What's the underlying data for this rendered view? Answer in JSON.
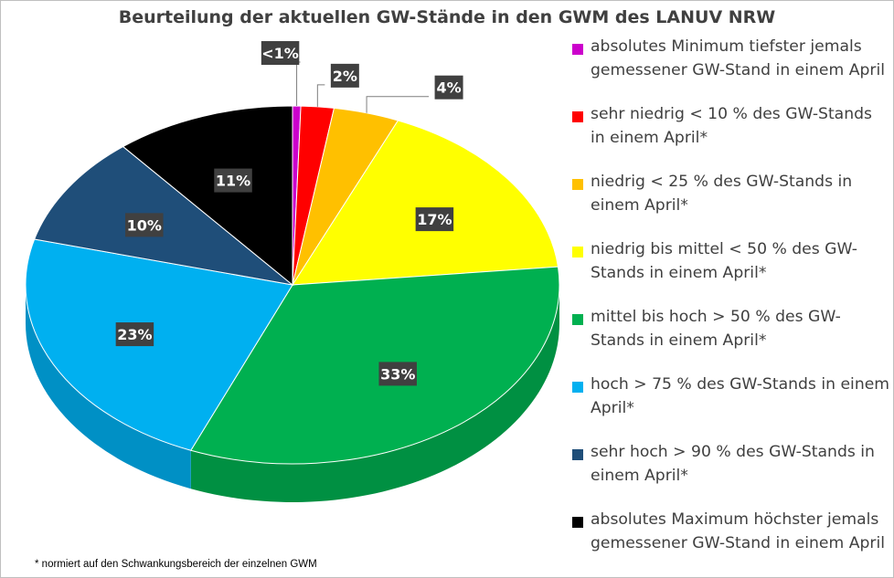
{
  "chart_data": {
    "type": "pie",
    "title": "Beurteilung der aktuellen GW-Stände in den GWM des LANUV NRW",
    "categories": [
      "absolutes Minimum  tiefster jemals gemessener GW-Stand in einem April",
      "sehr niedrig  < 10 % des GW-Stands in einem April*",
      "niedrig   < 25 % des GW-Stands in einem April*",
      "niedrig bis mittel  < 50 % des GW-Stands in einem April*",
      "mittel bis hoch  > 50 % des GW-Stands in einem April*",
      "hoch  > 75 % des GW-Stands in einem April*",
      "sehr hoch  > 90 % des GW-Stands in einem April*",
      "absolutes Maximum  höchster jemals gemessener GW-Stand in einem April"
    ],
    "values": [
      0.5,
      2,
      4,
      17,
      33,
      23,
      10,
      11
    ],
    "labels": [
      "<1%",
      "2%",
      "4%",
      "17%",
      "33%",
      "23%",
      "10%",
      "11%"
    ],
    "colors": [
      "#cc00cc",
      "#ff0000",
      "#ffc000",
      "#ffff00",
      "#00b050",
      "#00b0f0",
      "#1f4e79",
      "#000000"
    ],
    "legend_position": "right",
    "footnote": "* normiert auf den Schwankungsbereich der einzelnen GWM"
  }
}
